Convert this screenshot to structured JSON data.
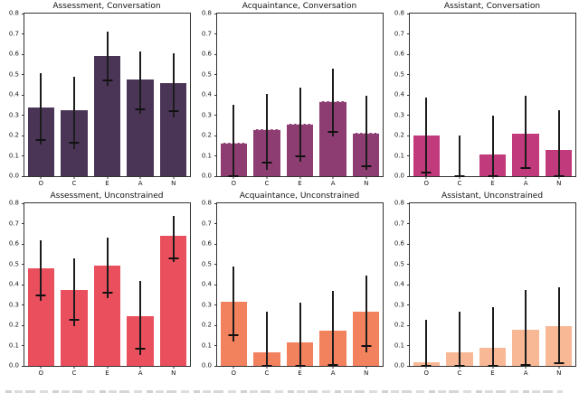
{
  "figure": {
    "type": "matplotlib-figure",
    "rows": 2,
    "cols": 3,
    "background": "#ffffff",
    "text_color": "#1a1a1a",
    "spine_color": "#333333",
    "errorbar_color": "#1c1c1c"
  },
  "chart_data": [
    {
      "type": "bar",
      "title": "Assessment, Conversation",
      "categories": [
        "O",
        "C",
        "E",
        "A",
        "N"
      ],
      "values": [
        0.34,
        0.325,
        0.59,
        0.475,
        0.46
      ],
      "err_low": [
        0.155,
        0.135,
        0.445,
        0.305,
        0.29
      ],
      "err_high": [
        0.505,
        0.49,
        0.71,
        0.615,
        0.605
      ],
      "marker": [
        0.18,
        0.165,
        0.47,
        0.33,
        0.32
      ],
      "bar_color": "#4a3557",
      "top_dashed": false,
      "xlabel": "",
      "ylabel": "",
      "ylim": [
        0.0,
        0.8
      ],
      "yticks": [
        "0.0",
        "0.1",
        "0.2",
        "0.3",
        "0.4",
        "0.5",
        "0.6",
        "0.7",
        "0.8"
      ],
      "grid": false,
      "legend": null
    },
    {
      "type": "bar",
      "title": "Acquaintance, Conversation",
      "categories": [
        "O",
        "C",
        "E",
        "A",
        "N"
      ],
      "values": [
        0.165,
        0.23,
        0.26,
        0.37,
        0.215
      ],
      "err_low": [
        0.0,
        0.03,
        0.07,
        0.195,
        0.03
      ],
      "err_high": [
        0.35,
        0.405,
        0.435,
        0.53,
        0.395
      ],
      "marker": [
        0.0,
        0.065,
        0.1,
        0.22,
        0.05
      ],
      "bar_color": "#8e3d72",
      "top_dashed": true,
      "xlabel": "",
      "ylabel": "",
      "ylim": [
        0.0,
        0.8
      ],
      "yticks": [
        "0.0",
        "0.1",
        "0.2",
        "0.3",
        "0.4",
        "0.5",
        "0.6",
        "0.7",
        "0.8"
      ],
      "grid": false,
      "legend": null
    },
    {
      "type": "bar",
      "title": "Assistant, Conversation",
      "categories": [
        "O",
        "C",
        "E",
        "A",
        "N"
      ],
      "values": [
        0.2,
        0.0,
        0.105,
        0.21,
        0.13
      ],
      "err_low": [
        0.0,
        0.0,
        0.0,
        0.035,
        0.0
      ],
      "err_high": [
        0.385,
        0.2,
        0.3,
        0.395,
        0.325
      ],
      "marker": [
        0.02,
        0.0,
        0.0,
        0.04,
        0.0
      ],
      "bar_color": "#c13a7b",
      "top_dashed": false,
      "xlabel": "",
      "ylabel": "",
      "ylim": [
        0.0,
        0.8
      ],
      "yticks": [
        "0.0",
        "0.1",
        "0.2",
        "0.3",
        "0.4",
        "0.5",
        "0.6",
        "0.7",
        "0.8"
      ],
      "grid": false,
      "legend": null
    },
    {
      "type": "bar",
      "title": "Assessment, Unconstrained",
      "categories": [
        "O",
        "C",
        "E",
        "A",
        "N"
      ],
      "values": [
        0.48,
        0.375,
        0.495,
        0.245,
        0.64
      ],
      "err_low": [
        0.32,
        0.195,
        0.335,
        0.055,
        0.51
      ],
      "err_high": [
        0.62,
        0.53,
        0.63,
        0.42,
        0.74
      ],
      "marker": [
        0.345,
        0.225,
        0.36,
        0.085,
        0.53
      ],
      "bar_color": "#e94f5c",
      "top_dashed": false,
      "xlabel": "",
      "ylabel": "",
      "ylim": [
        0.0,
        0.8
      ],
      "yticks": [
        "0.0",
        "0.1",
        "0.2",
        "0.3",
        "0.4",
        "0.5",
        "0.6",
        "0.7",
        "0.8"
      ],
      "grid": false,
      "legend": null
    },
    {
      "type": "bar",
      "title": "Acquaintance, Unconstrained",
      "categories": [
        "O",
        "C",
        "E",
        "A",
        "N"
      ],
      "values": [
        0.315,
        0.065,
        0.115,
        0.175,
        0.265
      ],
      "err_low": [
        0.12,
        0.0,
        0.0,
        0.005,
        0.065
      ],
      "err_high": [
        0.49,
        0.265,
        0.31,
        0.37,
        0.445
      ],
      "marker": [
        0.15,
        0.0,
        0.0,
        0.005,
        0.1
      ],
      "bar_color": "#f2815e",
      "top_dashed": false,
      "xlabel": "",
      "ylabel": "",
      "ylim": [
        0.0,
        0.8
      ],
      "yticks": [
        "0.0",
        "0.1",
        "0.2",
        "0.3",
        "0.4",
        "0.5",
        "0.6",
        "0.7",
        "0.8"
      ],
      "grid": false,
      "legend": null
    },
    {
      "type": "bar",
      "title": "Assistant, Unconstrained",
      "categories": [
        "O",
        "C",
        "E",
        "A",
        "N"
      ],
      "values": [
        0.02,
        0.065,
        0.09,
        0.18,
        0.195
      ],
      "err_low": [
        0.0,
        0.0,
        0.0,
        0.005,
        0.015
      ],
      "err_high": [
        0.225,
        0.265,
        0.29,
        0.375,
        0.385
      ],
      "marker": [
        0.0,
        0.0,
        0.0,
        0.005,
        0.015
      ],
      "bar_color": "#f8b795",
      "top_dashed": false,
      "xlabel": "",
      "ylabel": "",
      "ylim": [
        0.0,
        0.8
      ],
      "yticks": [
        "0.0",
        "0.1",
        "0.2",
        "0.3",
        "0.4",
        "0.5",
        "0.6",
        "0.7",
        "0.8"
      ],
      "grid": false,
      "legend": null
    }
  ]
}
